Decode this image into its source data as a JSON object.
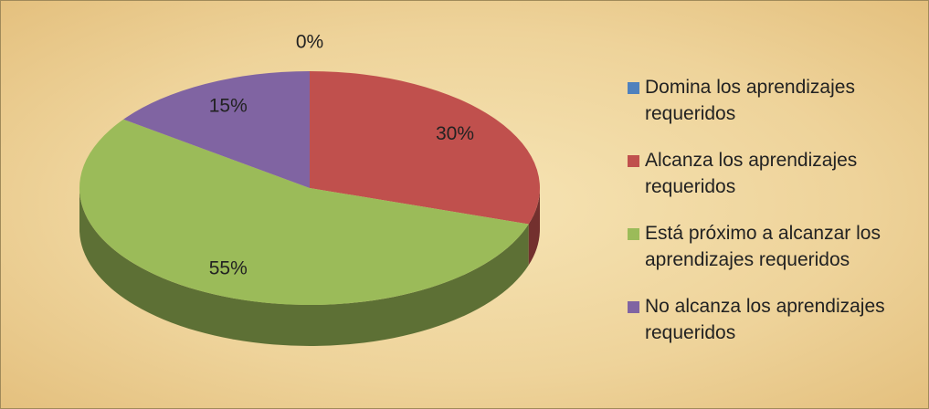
{
  "chart_data": {
    "type": "pie3d",
    "categories": [
      "Domina los aprendizajes requeridos",
      "Alcanza los aprendizajes requeridos",
      "Está próximo a alcanzar los aprendizajes requeridos",
      "No alcanza los aprendizajes requeridos"
    ],
    "values": [
      0,
      30,
      55,
      15
    ],
    "value_labels": [
      "0%",
      "30%",
      "55%",
      "15%"
    ],
    "colors": [
      "#4f81bd",
      "#c0504d",
      "#9bbb59",
      "#8064a2"
    ],
    "legend": "right"
  }
}
